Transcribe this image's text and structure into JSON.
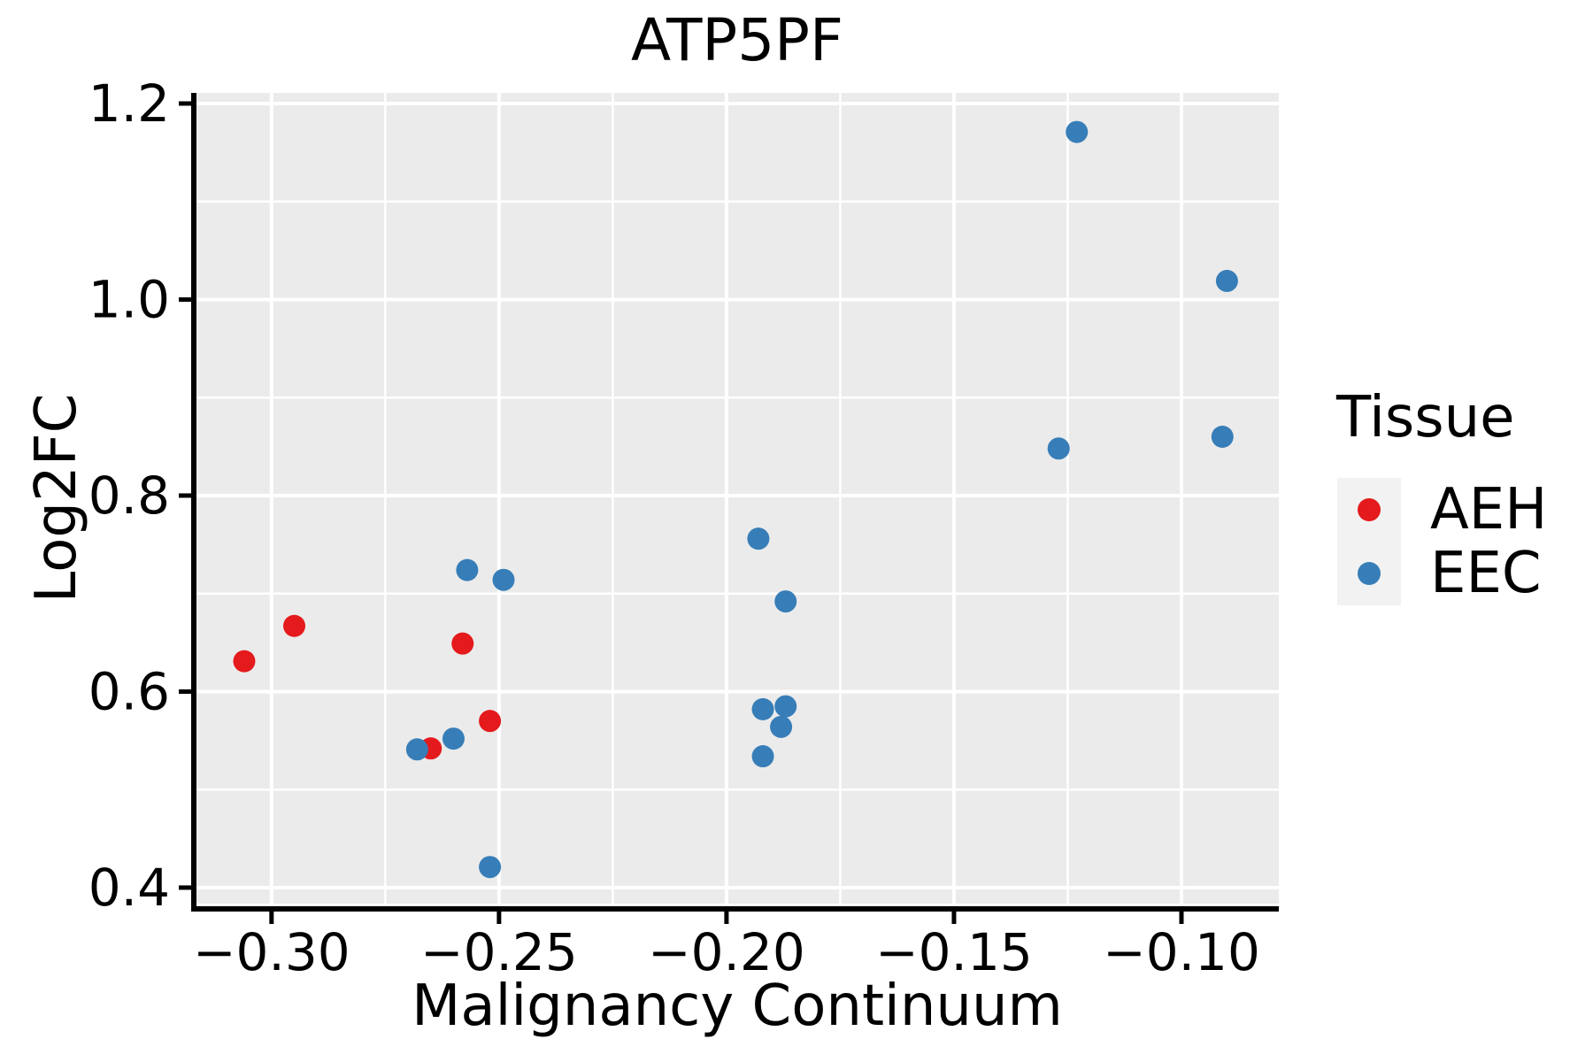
{
  "title": "ATP5PF",
  "x_axis": {
    "label": "Malignancy Continuum",
    "tick_labels": [
      "−0.30",
      "−0.25",
      "−0.20",
      "−0.15",
      "−0.10"
    ],
    "tick_values": [
      -0.3,
      -0.25,
      -0.2,
      -0.15,
      -0.1
    ]
  },
  "y_axis": {
    "label": "Log2FC",
    "tick_labels": [
      "0.4",
      "0.6",
      "0.8",
      "1.0",
      "1.2"
    ],
    "tick_values": [
      0.4,
      0.6,
      0.8,
      1.0,
      1.2
    ]
  },
  "legend": {
    "title": "Tissue",
    "items": [
      {
        "label": "AEH",
        "color": "#E41A1C"
      },
      {
        "label": "EEC",
        "color": "#377EB8"
      }
    ]
  },
  "chart_data": {
    "type": "scatter",
    "title": "ATP5PF",
    "xlabel": "Malignancy Continuum",
    "ylabel": "Log2FC",
    "xlim": [
      -0.3165,
      -0.0786
    ],
    "ylim": [
      0.3837,
      1.2108
    ],
    "grid": true,
    "legend_position": "right",
    "panel_color": "#EBEBEB",
    "grid_color": "#FFFFFF",
    "axis_color": "#000000",
    "point_radius": 12.5,
    "series": [
      {
        "name": "AEH",
        "color": "#E41A1C",
        "points": [
          [
            -0.306,
            0.631
          ],
          [
            -0.295,
            0.667
          ],
          [
            -0.265,
            0.542
          ],
          [
            -0.258,
            0.649
          ],
          [
            -0.252,
            0.57
          ]
        ]
      },
      {
        "name": "EEC",
        "color": "#377EB8",
        "points": [
          [
            -0.268,
            0.541
          ],
          [
            -0.26,
            0.552
          ],
          [
            -0.257,
            0.724
          ],
          [
            -0.249,
            0.714
          ],
          [
            -0.252,
            0.421
          ],
          [
            -0.193,
            0.756
          ],
          [
            -0.187,
            0.692
          ],
          [
            -0.192,
            0.582
          ],
          [
            -0.187,
            0.585
          ],
          [
            -0.188,
            0.564
          ],
          [
            -0.192,
            0.534
          ],
          [
            -0.123,
            1.171
          ],
          [
            -0.127,
            0.848
          ],
          [
            -0.09,
            1.019
          ],
          [
            -0.091,
            0.86
          ]
        ]
      }
    ]
  }
}
